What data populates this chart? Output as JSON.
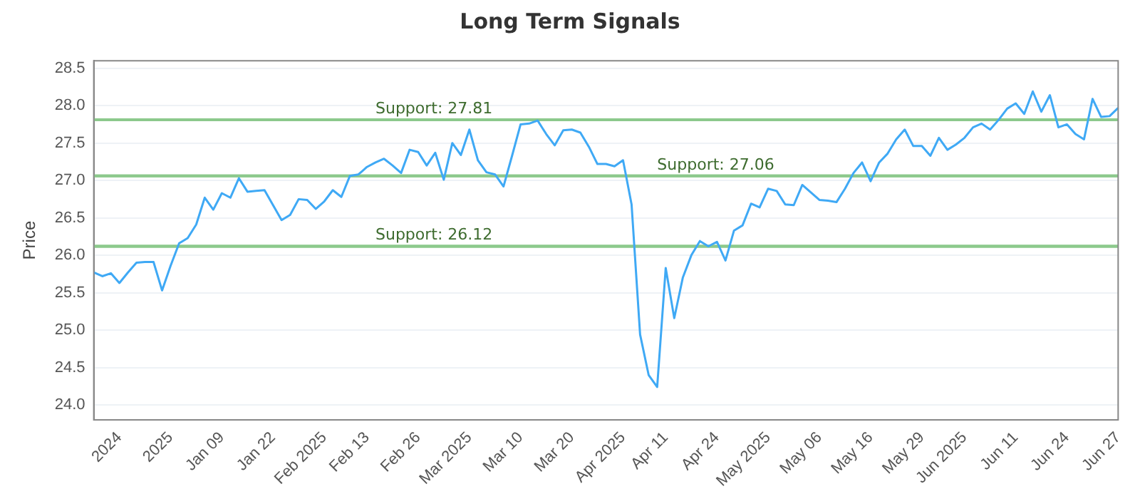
{
  "chart_data": {
    "type": "line",
    "title": "Long Term Signals",
    "ylabel": "Price",
    "categories": [
      null,
      null,
      null,
      "2024",
      null,
      null,
      null,
      null,
      null,
      "2025",
      null,
      null,
      null,
      null,
      null,
      "Jan 09",
      null,
      null,
      null,
      null,
      null,
      "Jan 22",
      null,
      null,
      null,
      null,
      null,
      "Feb 2025",
      null,
      null,
      null,
      null,
      "Feb 13",
      null,
      null,
      null,
      null,
      null,
      "Feb 26",
      null,
      null,
      null,
      null,
      null,
      "Mar 2025",
      null,
      null,
      null,
      null,
      null,
      "Mar 10",
      null,
      null,
      null,
      null,
      null,
      "Mar 20",
      null,
      null,
      null,
      null,
      null,
      "Apr 2025",
      null,
      null,
      null,
      null,
      "Apr 11",
      null,
      null,
      null,
      null,
      null,
      "Apr 24",
      null,
      null,
      null,
      null,
      null,
      "May 2025",
      null,
      null,
      null,
      null,
      null,
      "May 06",
      null,
      null,
      null,
      null,
      null,
      "May 16",
      null,
      null,
      null,
      null,
      null,
      "May 29",
      null,
      null,
      null,
      null,
      "Jun 2025",
      null,
      null,
      null,
      null,
      null,
      "Jun 11",
      null,
      null,
      null,
      null,
      null,
      "Jun 24",
      null,
      null,
      null,
      null,
      null,
      "Jun 27"
    ],
    "series": [
      {
        "color": "#3fa9f5",
        "values": [
          25.77,
          25.72,
          25.76,
          25.63,
          25.77,
          25.9,
          25.91,
          25.91,
          25.53,
          25.86,
          26.16,
          26.23,
          26.41,
          26.77,
          26.61,
          26.83,
          26.77,
          27.03,
          26.85,
          26.86,
          26.87,
          26.67,
          26.47,
          26.54,
          26.75,
          26.74,
          26.62,
          26.72,
          26.87,
          26.78,
          27.06,
          27.08,
          27.18,
          27.24,
          27.29,
          27.2,
          27.1,
          27.41,
          27.38,
          27.2,
          27.37,
          27.01,
          27.5,
          27.34,
          27.68,
          27.27,
          27.11,
          27.08,
          26.92,
          27.33,
          27.75,
          27.76,
          27.8,
          27.62,
          27.47,
          27.67,
          27.68,
          27.64,
          27.45,
          27.22,
          27.22,
          27.19,
          27.27,
          26.68,
          24.94,
          24.4,
          24.24,
          25.83,
          25.16,
          25.7,
          26.0,
          26.19,
          26.12,
          26.18,
          25.93,
          26.33,
          26.4,
          26.69,
          26.64,
          26.89,
          26.86,
          26.68,
          26.67,
          26.94,
          26.84,
          26.74,
          26.73,
          26.71,
          26.89,
          27.1,
          27.24,
          26.99,
          27.24,
          27.36,
          27.55,
          27.68,
          27.46,
          27.46,
          27.33,
          27.57,
          27.41,
          27.48,
          27.57,
          27.71,
          27.76,
          27.68,
          27.81,
          27.96,
          28.03,
          27.89,
          28.19,
          27.92,
          28.14,
          27.71,
          27.75,
          27.62,
          27.55,
          28.09,
          27.85,
          27.86,
          27.97
        ]
      }
    ],
    "ylim": [
      23.8,
      28.6
    ],
    "yticks": [
      {
        "value": 24,
        "label": "24.0"
      },
      {
        "value": 24.5,
        "label": "24.5"
      },
      {
        "value": 25,
        "label": "25.0"
      },
      {
        "value": 25.5,
        "label": "25.5"
      },
      {
        "value": 26,
        "label": "26.0"
      },
      {
        "value": 26.5,
        "label": "26.5"
      },
      {
        "value": 27,
        "label": "27.0"
      },
      {
        "value": 27.5,
        "label": "27.5"
      },
      {
        "value": 28,
        "label": "28.0"
      },
      {
        "value": 28.5,
        "label": "28.5"
      }
    ],
    "ref_lines": [
      {
        "axis": "y",
        "value": 27.81,
        "label": "Support: 27.81",
        "color": "#8cc98c"
      },
      {
        "axis": "y",
        "value": 27.06,
        "label": "Support: 27.06",
        "color": "#8cc98c"
      },
      {
        "axis": "y",
        "value": 26.12,
        "label": "Support: 26.12",
        "color": "#8cc98c"
      }
    ],
    "grid": "y",
    "marker": "none",
    "line_style": "solid",
    "legend": false
  }
}
